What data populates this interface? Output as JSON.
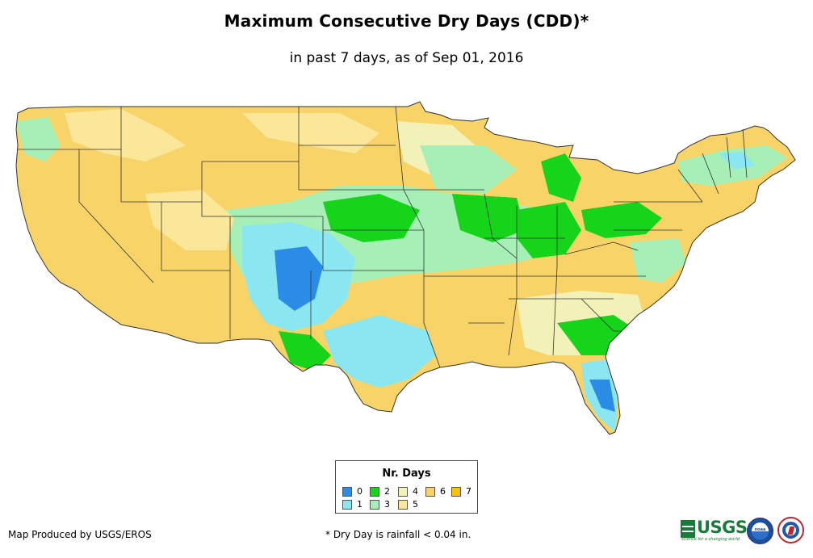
{
  "header": {
    "title": "Maximum Consecutive Dry Days (CDD)*",
    "subtitle": "in past 7 days, as of Sep 01, 2016"
  },
  "legend": {
    "title": "Nr. Days",
    "items": [
      {
        "label": "0",
        "color": "#2b8ce6"
      },
      {
        "label": "1",
        "color": "#8ae6f0"
      },
      {
        "label": "2",
        "color": "#16d41a"
      },
      {
        "label": "3",
        "color": "#a6f0b8"
      },
      {
        "label": "4",
        "color": "#f2f2b8"
      },
      {
        "label": "5",
        "color": "#fae79a"
      },
      {
        "label": "6",
        "color": "#f8d468"
      },
      {
        "label": "7",
        "color": "#f7c400"
      }
    ]
  },
  "footer": {
    "credit": "Map Produced by USGS/EROS",
    "footnote": "* Dry Day is rainfall < 0.04 in.",
    "usgs_word": "USGS",
    "usgs_tagline": "science for a changing world",
    "noaa_word": "noaa"
  },
  "map": {
    "region": "contiguous-united-states",
    "colors": {
      "land_default": "#f8d468",
      "state_border": "#333333"
    }
  }
}
